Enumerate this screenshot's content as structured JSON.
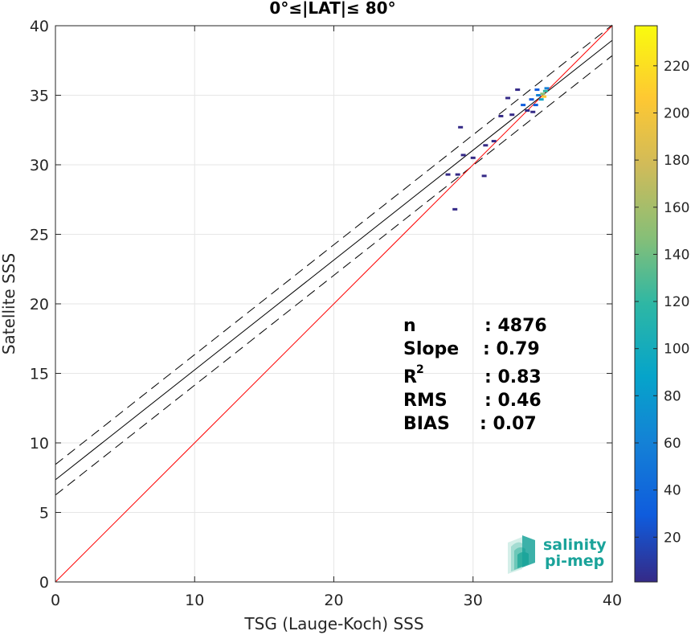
{
  "chart_data": {
    "type": "scatter",
    "title": "0°≤|LAT|≤ 80°",
    "xlabel": "TSG (Lauge-Koch) SSS",
    "ylabel": "Satellite SSS",
    "xlim": [
      0,
      40
    ],
    "ylim": [
      0,
      40
    ],
    "xticks": [
      "0",
      "10",
      "20",
      "30",
      "40"
    ],
    "yticks": [
      "0",
      "5",
      "10",
      "15",
      "20",
      "25",
      "30",
      "35",
      "40"
    ],
    "grid": true,
    "colorbar": {
      "range": [
        1,
        237
      ],
      "ticks": [
        "20",
        "40",
        "60",
        "80",
        "100",
        "120",
        "140",
        "160",
        "180",
        "200",
        "220"
      ]
    },
    "lines": {
      "identity": {
        "slope": 1,
        "intercept": 0,
        "color": "#ff0000"
      },
      "fit": {
        "slope": 0.79,
        "intercept": 7.35,
        "color": "#000000"
      },
      "fit_upper": {
        "slope": 0.79,
        "intercept": 8.45,
        "style": "dashed"
      },
      "fit_lower": {
        "slope": 0.79,
        "intercept": 6.25,
        "style": "dashed"
      }
    },
    "points": [
      {
        "x": 28.7,
        "y": 26.8,
        "c": 8
      },
      {
        "x": 28.2,
        "y": 29.3,
        "c": 3
      },
      {
        "x": 28.9,
        "y": 29.3,
        "c": 3
      },
      {
        "x": 29.3,
        "y": 30.7,
        "c": 6
      },
      {
        "x": 29.1,
        "y": 32.7,
        "c": 10
      },
      {
        "x": 30.0,
        "y": 30.5,
        "c": 3
      },
      {
        "x": 30.8,
        "y": 29.2,
        "c": 2
      },
      {
        "x": 30.9,
        "y": 31.4,
        "c": 2
      },
      {
        "x": 31.5,
        "y": 31.7,
        "c": 8
      },
      {
        "x": 32.0,
        "y": 33.5,
        "c": 10
      },
      {
        "x": 32.8,
        "y": 33.6,
        "c": 12
      },
      {
        "x": 33.6,
        "y": 34.3,
        "c": 18
      },
      {
        "x": 33.9,
        "y": 33.9,
        "c": 15
      },
      {
        "x": 34.2,
        "y": 34.7,
        "c": 30
      },
      {
        "x": 34.5,
        "y": 34.3,
        "c": 40
      },
      {
        "x": 34.7,
        "y": 35.0,
        "c": 70
      },
      {
        "x": 34.9,
        "y": 34.7,
        "c": 90
      },
      {
        "x": 35.0,
        "y": 35.1,
        "c": 140
      },
      {
        "x": 35.1,
        "y": 34.9,
        "c": 200
      },
      {
        "x": 35.2,
        "y": 35.3,
        "c": 120
      },
      {
        "x": 35.3,
        "y": 35.5,
        "c": 60
      },
      {
        "x": 34.6,
        "y": 35.4,
        "c": 20
      },
      {
        "x": 33.2,
        "y": 35.4,
        "c": 5
      },
      {
        "x": 34.3,
        "y": 33.8,
        "c": 12
      },
      {
        "x": 32.5,
        "y": 34.8,
        "c": 4
      }
    ]
  },
  "stats": {
    "n_label": "n",
    "n_value": ": 4876",
    "slope_label": "Slope",
    "slope_value": ": 0.79",
    "r2_label": "R",
    "r2_sup": "2",
    "r2_value": ": 0.83",
    "rms_label": "RMS",
    "rms_value": ": 0.46",
    "bias_label": "BIAS",
    "bias_value": ": 0.07"
  },
  "logo": {
    "line1": "salinity",
    "line2": "pi-mep",
    "accent_color": "#1aa39a"
  }
}
